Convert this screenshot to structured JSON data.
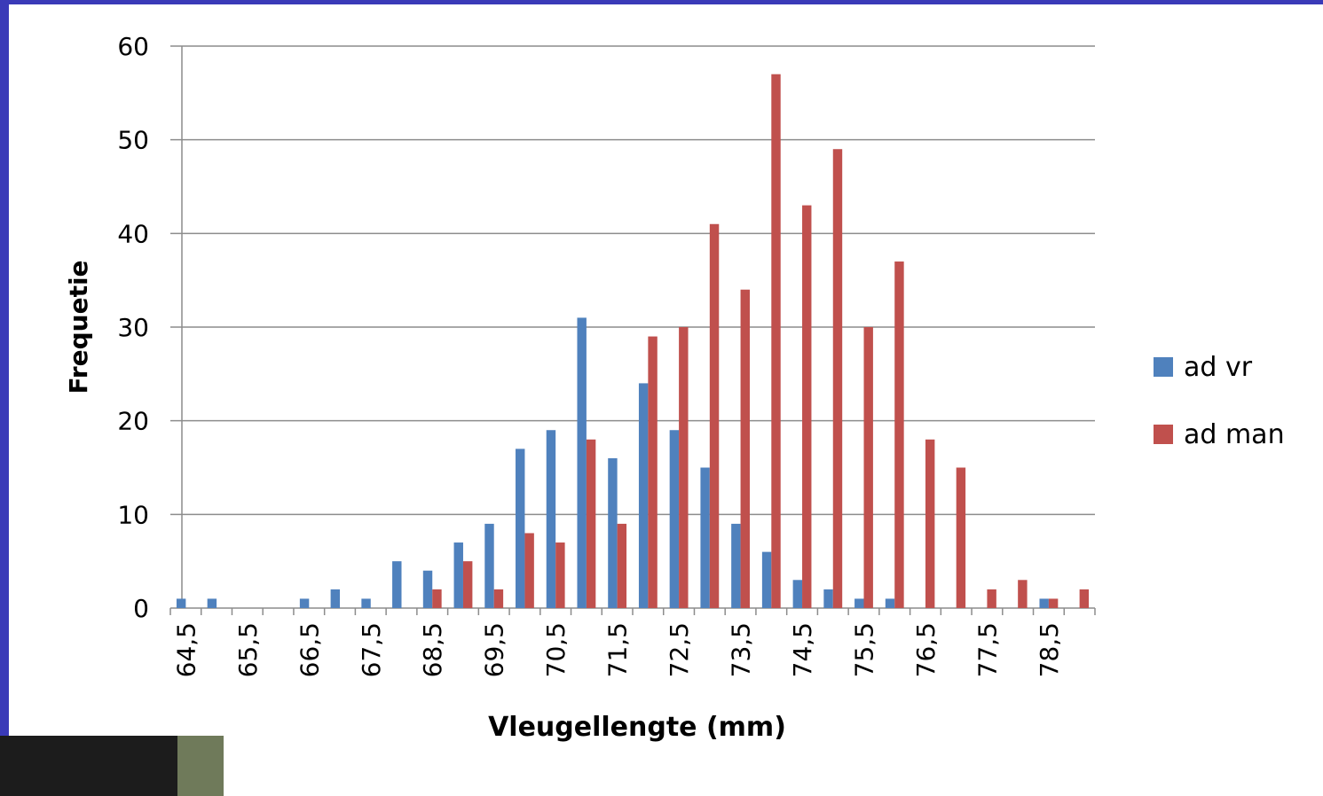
{
  "chart_data": {
    "type": "bar",
    "x_label": "Vleugellengte (mm)",
    "y_label": "Frequetie",
    "categories": [
      "64,5",
      null,
      "65,5",
      null,
      "66,5",
      null,
      "67,5",
      null,
      "68,5",
      null,
      "69,5",
      null,
      "70,5",
      null,
      "71,5",
      null,
      "72,5",
      null,
      "73,5",
      null,
      "74,5",
      null,
      "75,5",
      null,
      "76,5",
      null,
      "77,5",
      null,
      "78,5",
      null
    ],
    "series": [
      {
        "name": "ad vr",
        "color": "#4f81bd",
        "values": [
          1,
          1,
          0,
          0,
          1,
          2,
          1,
          5,
          4,
          7,
          9,
          17,
          19,
          31,
          16,
          24,
          19,
          15,
          9,
          6,
          3,
          2,
          1,
          1,
          0,
          0,
          0,
          0,
          1,
          0
        ]
      },
      {
        "name": "ad man",
        "color": "#c0504d",
        "values": [
          0,
          0,
          0,
          0,
          0,
          0,
          0,
          0,
          2,
          5,
          2,
          8,
          7,
          18,
          9,
          29,
          30,
          41,
          34,
          57,
          43,
          49,
          30,
          37,
          18,
          15,
          2,
          3,
          1,
          2
        ]
      }
    ],
    "ylim": [
      0,
      60
    ],
    "yticks": [
      0,
      10,
      20,
      30,
      40,
      50,
      60
    ],
    "grid": true,
    "legend": "right"
  }
}
